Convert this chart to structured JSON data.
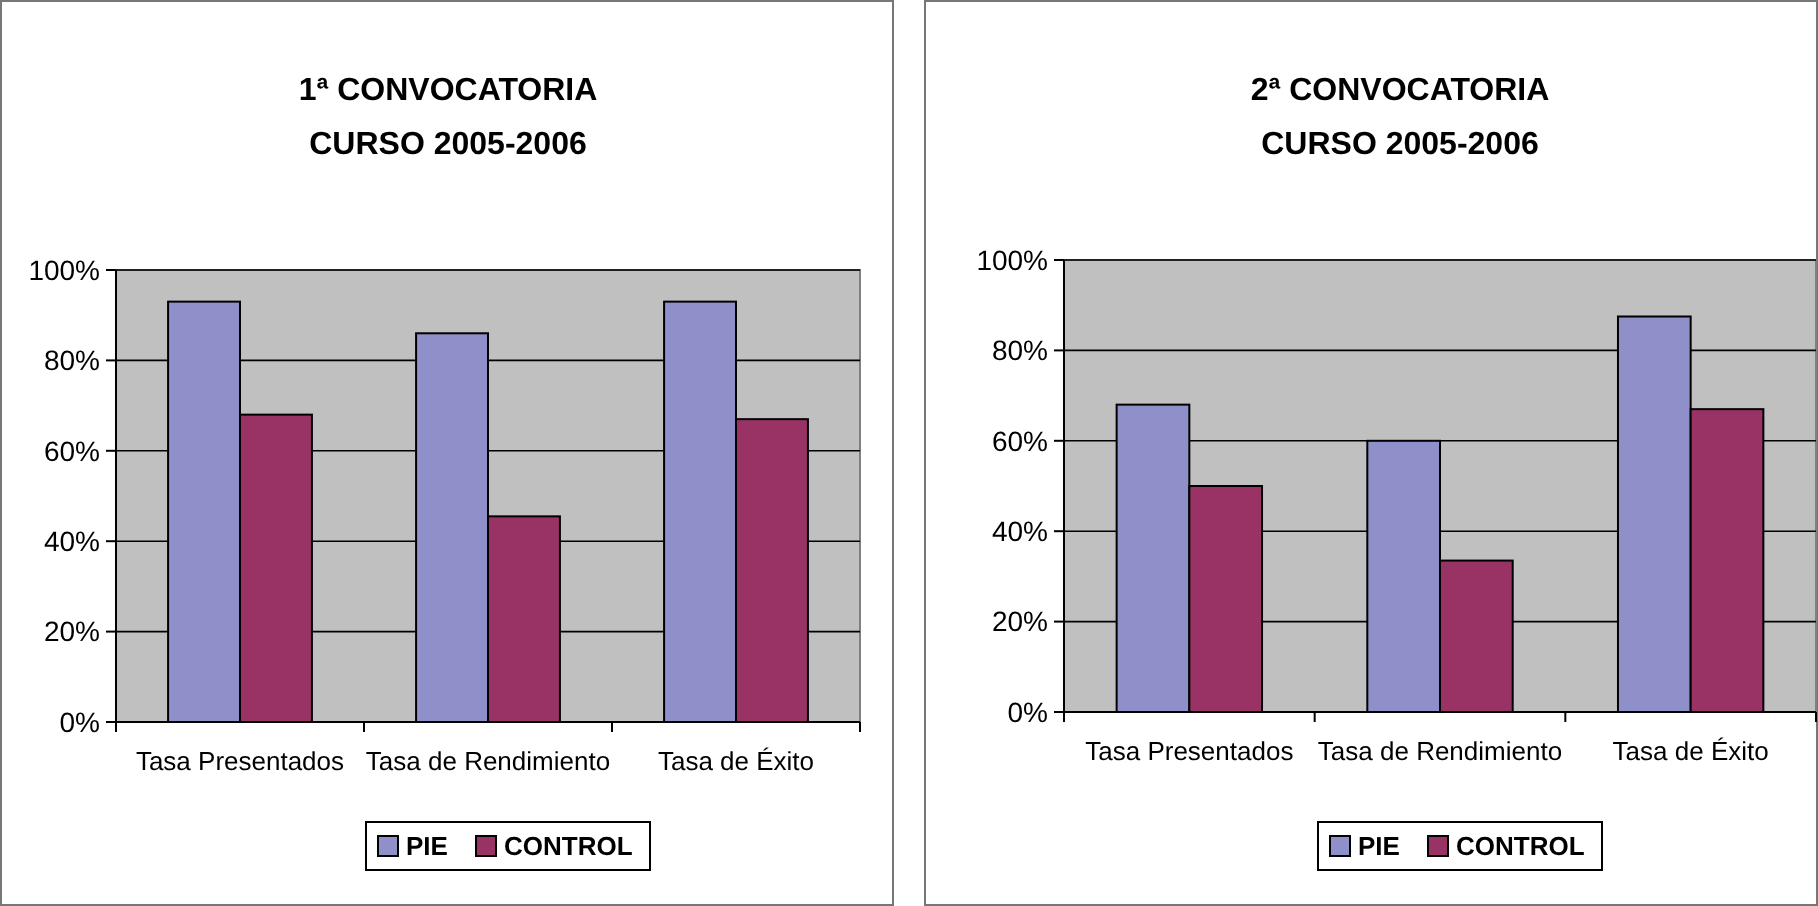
{
  "chart_data": [
    {
      "type": "bar",
      "title": "1ª CONVOCATORIA\nCURSO 2005-2006",
      "categories": [
        "Tasa Presentados",
        "Tasa de Rendimiento",
        "Tasa de Éxito"
      ],
      "series": [
        {
          "name": "PIE",
          "color": "#8f8fca",
          "values": [
            93,
            86,
            93
          ]
        },
        {
          "name": "CONTROL",
          "color": "#993366",
          "values": [
            68,
            45.5,
            67
          ]
        }
      ],
      "ylim": [
        0,
        100
      ],
      "yticks": [
        {
          "value": 0,
          "label": "0%"
        },
        {
          "value": 20,
          "label": "20%"
        },
        {
          "value": 40,
          "label": "40%"
        },
        {
          "value": 60,
          "label": "60%"
        },
        {
          "value": 80,
          "label": "80%"
        },
        {
          "value": 100,
          "label": "100%"
        }
      ],
      "grid": "y",
      "legend": "bottom"
    },
    {
      "type": "bar",
      "title": "2ª CONVOCATORIA\nCURSO 2005-2006",
      "categories": [
        "Tasa Presentados",
        "Tasa de Rendimiento",
        "Tasa de Éxito"
      ],
      "series": [
        {
          "name": "PIE",
          "color": "#8f8fca",
          "values": [
            68,
            60,
            87.5
          ]
        },
        {
          "name": "CONTROL",
          "color": "#993366",
          "values": [
            50,
            33.5,
            67
          ]
        }
      ],
      "ylim": [
        0,
        100
      ],
      "yticks": [
        {
          "value": 0,
          "label": "0%"
        },
        {
          "value": 20,
          "label": "20%"
        },
        {
          "value": 40,
          "label": "40%"
        },
        {
          "value": 60,
          "label": "60%"
        },
        {
          "value": 80,
          "label": "80%"
        },
        {
          "value": 100,
          "label": "100%"
        }
      ],
      "grid": "y",
      "legend": "bottom"
    }
  ]
}
